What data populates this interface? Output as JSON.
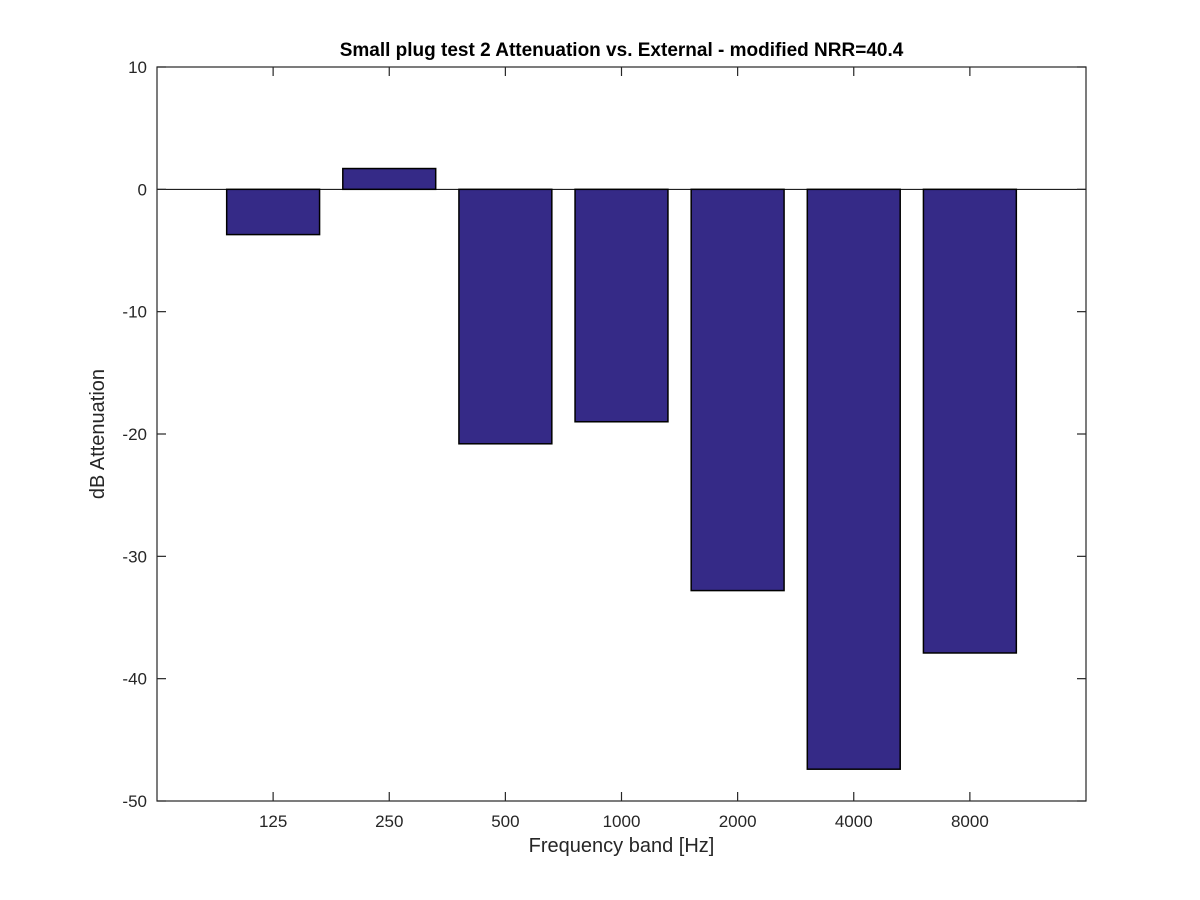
{
  "chart_data": {
    "type": "bar",
    "title": "Small plug test 2 Attenuation vs. External - modified NRR=40.4",
    "xlabel": "Frequency band [Hz]",
    "ylabel": "dB Attenuation",
    "categories": [
      "125",
      "250",
      "500",
      "1000",
      "2000",
      "4000",
      "8000"
    ],
    "values": [
      -3.7,
      1.7,
      -20.8,
      -19.0,
      -32.8,
      -47.4,
      -37.9
    ],
    "ylim": [
      -50,
      10
    ],
    "yticks": [
      10,
      0,
      -10,
      -20,
      -30,
      -40,
      -50
    ],
    "xlim": [
      0,
      8
    ],
    "grid": false,
    "colors": {
      "bar_fill": "#352a87",
      "bar_edge": "#000000",
      "axis": "#262626",
      "zero_line": "#000000"
    }
  }
}
